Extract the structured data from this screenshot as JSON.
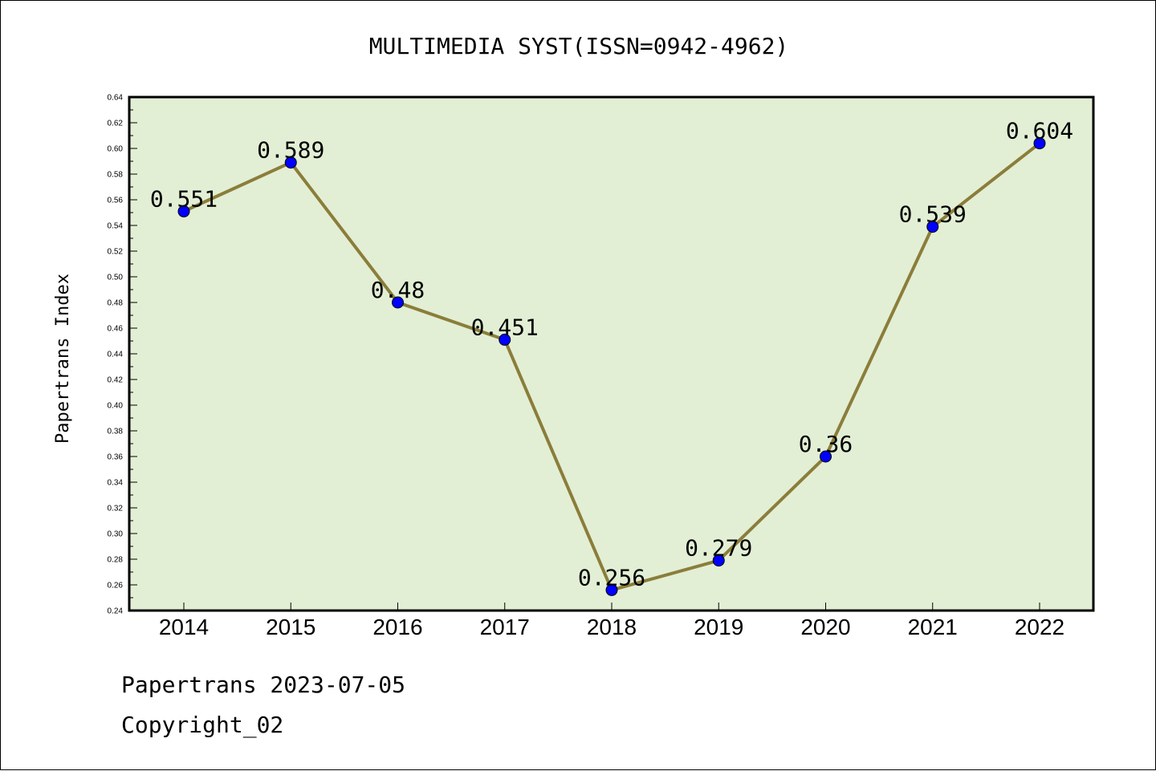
{
  "chart_data": {
    "type": "line",
    "title": "MULTIMEDIA SYST(ISSN=0942-4962)",
    "xlabel": "",
    "ylabel": "Papertrans Index",
    "categories": [
      "2014",
      "2015",
      "2016",
      "2017",
      "2018",
      "2019",
      "2020",
      "2021",
      "2022"
    ],
    "values": [
      0.551,
      0.589,
      0.48,
      0.451,
      0.256,
      0.279,
      0.36,
      0.539,
      0.604
    ],
    "data_labels": [
      "0.551",
      "0.589",
      "0.48",
      "0.451",
      "0.256",
      "0.279",
      "0.36",
      "0.539",
      "0.604"
    ],
    "ylim": [
      0.24,
      0.64
    ],
    "yticks": [
      "0.24",
      "0.26",
      "0.28",
      "0.30",
      "0.32",
      "0.34",
      "0.36",
      "0.38",
      "0.40",
      "0.42",
      "0.44",
      "0.46",
      "0.48",
      "0.50",
      "0.52",
      "0.54",
      "0.56",
      "0.58",
      "0.60",
      "0.62",
      "0.64"
    ],
    "grid": false,
    "legend": "none",
    "colors": {
      "plot_background": "#e2efd5",
      "line": "#8b7d3a",
      "marker": "#0000ff"
    }
  },
  "footer": {
    "line1": "Papertrans 2023-07-05",
    "line2": "Copyright_02"
  }
}
